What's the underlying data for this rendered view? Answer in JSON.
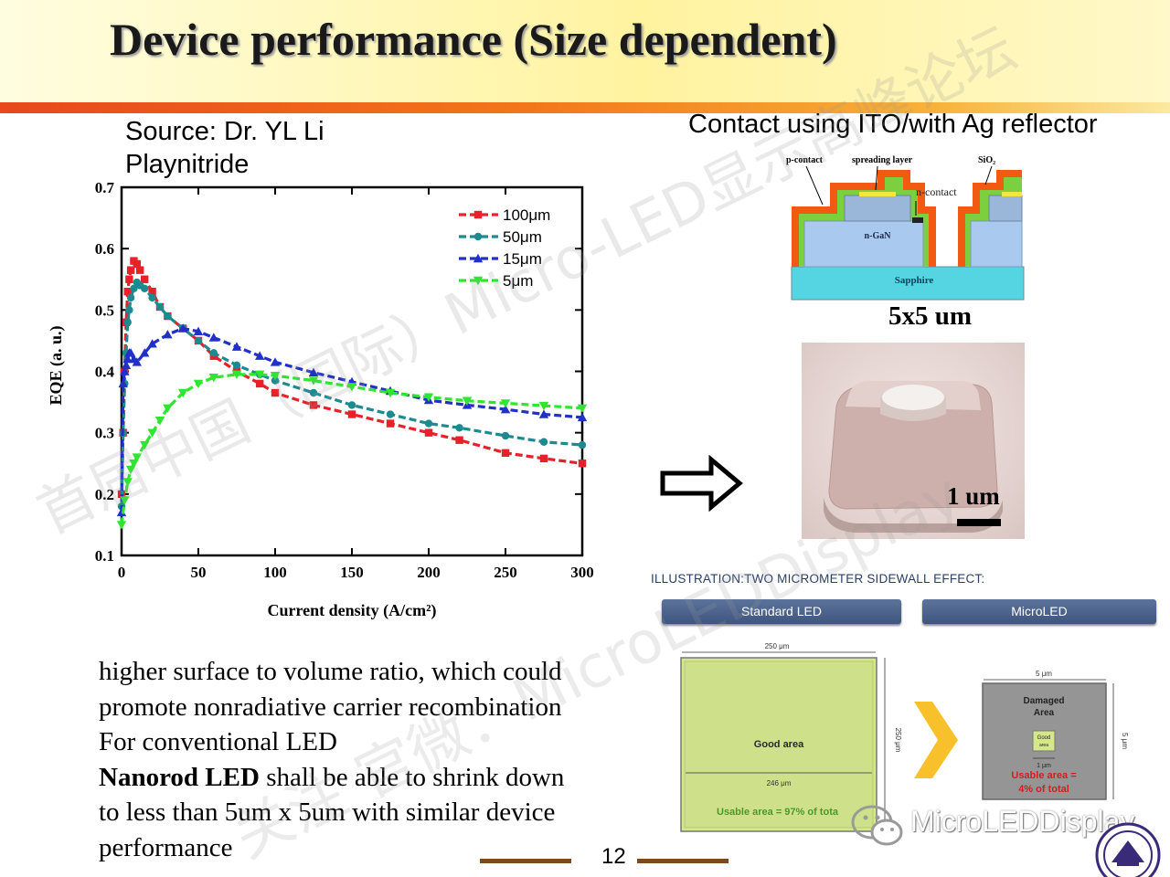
{
  "title": "Device performance (Size dependent)",
  "source": {
    "line1": "Source: Dr. YL Li",
    "line2": "Playnitride"
  },
  "contact_label": "Contact using ITO/with Ag reflector",
  "schematic": {
    "p_contact": "p-contact",
    "spreading_layer": "spreading layer",
    "sio2": "SiO₂",
    "n_contact": "n-contact",
    "ngan": "n-GaN",
    "sapphire": "Sapphire",
    "size": "5x5 um"
  },
  "photo_scale": "1 um",
  "chart_data": {
    "type": "line",
    "xlabel": "Current density (A/cm²)",
    "ylabel": "EQE (a. u.)",
    "xlim": [
      0,
      300
    ],
    "ylim": [
      0.1,
      0.7
    ],
    "xticks": [
      0,
      50,
      100,
      150,
      200,
      250,
      300
    ],
    "yticks": [
      0.1,
      0.2,
      0.3,
      0.4,
      0.5,
      0.6,
      0.7
    ],
    "legend_position": "top-right",
    "series": [
      {
        "name": "100μm",
        "color": "#e8202a",
        "marker": "square",
        "x": [
          0,
          1,
          2,
          3,
          4,
          5,
          6,
          8,
          10,
          12,
          15,
          20,
          25,
          30,
          40,
          50,
          60,
          75,
          90,
          100,
          125,
          150,
          175,
          200,
          220,
          250,
          275,
          300
        ],
        "y": [
          0.2,
          0.3,
          0.4,
          0.48,
          0.53,
          0.55,
          0.565,
          0.58,
          0.575,
          0.565,
          0.55,
          0.53,
          0.505,
          0.49,
          0.47,
          0.45,
          0.425,
          0.4,
          0.38,
          0.365,
          0.345,
          0.33,
          0.315,
          0.3,
          0.288,
          0.267,
          0.258,
          0.25
        ]
      },
      {
        "name": "50μm",
        "color": "#1c8a8e",
        "marker": "circle",
        "x": [
          0,
          1,
          2,
          3,
          4,
          5,
          6,
          8,
          10,
          12,
          15,
          20,
          25,
          30,
          40,
          50,
          60,
          75,
          90,
          100,
          125,
          150,
          175,
          200,
          220,
          250,
          275,
          300
        ],
        "y": [
          0.18,
          0.3,
          0.38,
          0.43,
          0.48,
          0.5,
          0.52,
          0.535,
          0.545,
          0.54,
          0.535,
          0.52,
          0.505,
          0.49,
          0.47,
          0.45,
          0.43,
          0.41,
          0.395,
          0.385,
          0.365,
          0.345,
          0.33,
          0.315,
          0.308,
          0.295,
          0.285,
          0.28
        ]
      },
      {
        "name": "15μm",
        "color": "#2030c8",
        "marker": "triangle-up",
        "x": [
          0,
          1,
          2,
          3,
          4,
          5,
          6,
          8,
          10,
          15,
          20,
          30,
          40,
          50,
          60,
          75,
          90,
          100,
          125,
          150,
          175,
          200,
          225,
          250,
          275,
          300
        ],
        "y": [
          0.17,
          0.38,
          0.4,
          0.41,
          0.42,
          0.43,
          0.43,
          0.42,
          0.415,
          0.43,
          0.445,
          0.46,
          0.47,
          0.465,
          0.455,
          0.44,
          0.425,
          0.415,
          0.398,
          0.383,
          0.368,
          0.353,
          0.345,
          0.338,
          0.33,
          0.325
        ]
      },
      {
        "name": "5μm",
        "color": "#2ee62e",
        "marker": "triangle-down",
        "x": [
          0,
          2,
          4,
          6,
          8,
          10,
          15,
          20,
          25,
          30,
          40,
          50,
          60,
          75,
          90,
          100,
          125,
          150,
          175,
          200,
          225,
          250,
          275,
          300
        ],
        "y": [
          0.15,
          0.19,
          0.22,
          0.24,
          0.25,
          0.26,
          0.28,
          0.3,
          0.32,
          0.34,
          0.365,
          0.38,
          0.39,
          0.395,
          0.395,
          0.393,
          0.385,
          0.375,
          0.365,
          0.358,
          0.352,
          0.348,
          0.344,
          0.34
        ]
      }
    ]
  },
  "body": {
    "line1": "higher surface to volume ratio, which could",
    "line2": "promote nonradiative carrier recombination",
    "line3": "For conventional  LED",
    "line4_bold": "Nanorod LED",
    "line4_rest": " shall be able to shrink down",
    "line5": "to less than 5um x 5um with similar device",
    "line6": "performance"
  },
  "illustration": {
    "title": "ILLUSTRATION:TWO MICROMETER SIDEWALL EFFECT:",
    "tab_standard": "Standard LED",
    "tab_micro": "MicroLED",
    "std_top_dim": "250 μm",
    "std_side_dim": "250 μm",
    "std_inner_dim": "246 μm",
    "good_area": "Good area",
    "std_usable": "Usable area = 97% of tota",
    "micro_top_dim": "5 μm",
    "micro_side_dim": "5 μm",
    "damaged_area_1": "Damaged",
    "damaged_area_2": "Area",
    "good_small_1": "Good",
    "good_small_2": "area",
    "micro_inner_dim": "1 μm",
    "micro_usable_1": "Usable area =",
    "micro_usable_2": "4% of total"
  },
  "page_number": "12",
  "watermark": {
    "text": "首届中国（国际）Micro-LED显示高峰论坛",
    "text2": "关注 官微：MicroLEDDisplay",
    "brand": "MicroLEDDisplay"
  }
}
